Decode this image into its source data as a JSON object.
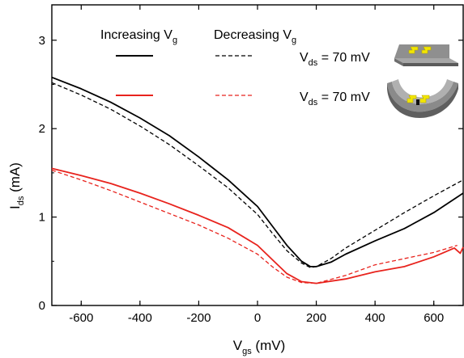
{
  "chart_data": {
    "type": "line",
    "xlabel": {
      "main": "V",
      "sub": "gs",
      "unit": " (mV)"
    },
    "ylabel": {
      "main": "I",
      "sub": "ds",
      "unit": " (mA)"
    },
    "xlim": [
      -700,
      700
    ],
    "ylim": [
      0,
      3.4
    ],
    "xticks": [
      -600,
      -400,
      -200,
      0,
      200,
      400,
      600
    ],
    "yticks": [
      0,
      1,
      2,
      3
    ],
    "xtick_labels": [
      "-600",
      "-400",
      "-200",
      "0",
      "200",
      "400",
      "600"
    ],
    "ytick_labels": [
      "0",
      "1",
      "2",
      "3"
    ],
    "grid": false,
    "legend": {
      "header_increasing": {
        "main": "Increasing V",
        "sub": "g"
      },
      "header_decreasing": {
        "main": "Decreasing V",
        "sub": "g"
      },
      "row1": {
        "main": "V",
        "sub": "ds",
        "rest": " = 70 mV"
      },
      "row2": {
        "main": "V",
        "sub": "ds",
        "rest": " = 70 mV"
      }
    },
    "colors": {
      "black": "#000000",
      "red": "#e8231d",
      "gray": "#8c8c8c",
      "yellow": "#f2e600"
    },
    "series": [
      {
        "color": "black",
        "style": "solid",
        "x": [
          -700,
          -600,
          -500,
          -400,
          -300,
          -200,
          -100,
          0,
          50,
          100,
          150,
          180,
          200,
          250,
          300,
          400,
          500,
          600,
          700
        ],
        "y": [
          2.58,
          2.45,
          2.3,
          2.12,
          1.92,
          1.68,
          1.42,
          1.12,
          0.9,
          0.68,
          0.5,
          0.44,
          0.44,
          0.49,
          0.58,
          0.73,
          0.87,
          1.05,
          1.27
        ]
      },
      {
        "color": "black",
        "style": "dashed",
        "x": [
          -700,
          -600,
          -500,
          -400,
          -300,
          -200,
          -100,
          0,
          50,
          100,
          150,
          180,
          200,
          250,
          300,
          400,
          500,
          600,
          700
        ],
        "y": [
          2.52,
          2.38,
          2.22,
          2.03,
          1.82,
          1.58,
          1.33,
          1.03,
          0.82,
          0.62,
          0.48,
          0.43,
          0.44,
          0.53,
          0.65,
          0.85,
          1.05,
          1.24,
          1.42
        ]
      },
      {
        "color": "red",
        "style": "solid",
        "x": [
          -700,
          -600,
          -500,
          -400,
          -300,
          -200,
          -100,
          0,
          50,
          100,
          150,
          200,
          300,
          400,
          500,
          600,
          670,
          680,
          690,
          700
        ],
        "y": [
          1.55,
          1.47,
          1.38,
          1.27,
          1.15,
          1.02,
          0.88,
          0.68,
          0.52,
          0.36,
          0.27,
          0.25,
          0.3,
          0.38,
          0.44,
          0.55,
          0.65,
          0.62,
          0.59,
          0.66
        ]
      },
      {
        "color": "red",
        "style": "dashed",
        "x": [
          -700,
          -600,
          -500,
          -400,
          -300,
          -200,
          -100,
          0,
          50,
          100,
          150,
          200,
          300,
          400,
          500,
          600,
          680
        ],
        "y": [
          1.53,
          1.42,
          1.3,
          1.17,
          1.04,
          0.91,
          0.76,
          0.58,
          0.44,
          0.32,
          0.26,
          0.25,
          0.34,
          0.46,
          0.53,
          0.6,
          0.68
        ]
      }
    ]
  }
}
